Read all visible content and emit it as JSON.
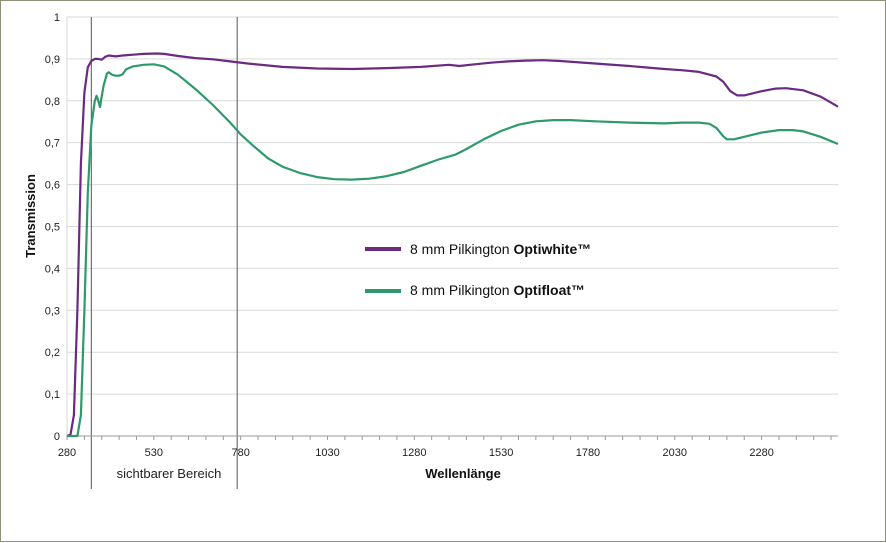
{
  "chart_data": {
    "type": "line",
    "xlabel": "Wellenlänge",
    "ylabel": "Transmission",
    "xlim": [
      280,
      2500
    ],
    "ylim": [
      0,
      1
    ],
    "x_ticks": [
      280,
      530,
      780,
      1030,
      1280,
      1530,
      1780,
      2030,
      2280
    ],
    "y_ticks": [
      "0",
      "0,1",
      "0,2",
      "0,3",
      "0,4",
      "0,5",
      "0,6",
      "0,7",
      "0,8",
      "0,9",
      "1"
    ],
    "grid": "horizontal",
    "legend_position": "center",
    "annotations": {
      "visible_range": {
        "x_start": 350,
        "x_end": 770,
        "label": "sichtbarer Bereich"
      }
    },
    "series": [
      {
        "name_regular": "8 mm Pilkington ",
        "name_bold": "Optiwhite™",
        "color": "#6a2a82",
        "points": [
          [
            280,
            0
          ],
          [
            290,
            0.003
          ],
          [
            300,
            0.05
          ],
          [
            310,
            0.3
          ],
          [
            320,
            0.65
          ],
          [
            330,
            0.82
          ],
          [
            340,
            0.88
          ],
          [
            350,
            0.895
          ],
          [
            360,
            0.9
          ],
          [
            370,
            0.9
          ],
          [
            380,
            0.898
          ],
          [
            390,
            0.905
          ],
          [
            400,
            0.908
          ],
          [
            420,
            0.906
          ],
          [
            440,
            0.908
          ],
          [
            470,
            0.91
          ],
          [
            500,
            0.912
          ],
          [
            540,
            0.913
          ],
          [
            560,
            0.912
          ],
          [
            600,
            0.907
          ],
          [
            650,
            0.902
          ],
          [
            700,
            0.899
          ],
          [
            750,
            0.894
          ],
          [
            800,
            0.889
          ],
          [
            900,
            0.881
          ],
          [
            1000,
            0.877
          ],
          [
            1100,
            0.876
          ],
          [
            1200,
            0.878
          ],
          [
            1300,
            0.881
          ],
          [
            1380,
            0.886
          ],
          [
            1410,
            0.883
          ],
          [
            1440,
            0.886
          ],
          [
            1500,
            0.891
          ],
          [
            1550,
            0.894
          ],
          [
            1600,
            0.896
          ],
          [
            1650,
            0.897
          ],
          [
            1700,
            0.895
          ],
          [
            1800,
            0.889
          ],
          [
            1900,
            0.883
          ],
          [
            2000,
            0.876
          ],
          [
            2050,
            0.873
          ],
          [
            2100,
            0.869
          ],
          [
            2150,
            0.858
          ],
          [
            2170,
            0.845
          ],
          [
            2190,
            0.823
          ],
          [
            2210,
            0.813
          ],
          [
            2230,
            0.813
          ],
          [
            2280,
            0.823
          ],
          [
            2320,
            0.829
          ],
          [
            2350,
            0.83
          ],
          [
            2400,
            0.825
          ],
          [
            2450,
            0.81
          ],
          [
            2500,
            0.786
          ]
        ]
      },
      {
        "name_regular": "8 mm Pilkington ",
        "name_bold": "Optifloat™",
        "color": "#2e9a6b",
        "points": [
          [
            280,
            0
          ],
          [
            310,
            0
          ],
          [
            320,
            0.05
          ],
          [
            330,
            0.3
          ],
          [
            340,
            0.58
          ],
          [
            350,
            0.74
          ],
          [
            360,
            0.8
          ],
          [
            365,
            0.812
          ],
          [
            370,
            0.8
          ],
          [
            375,
            0.785
          ],
          [
            380,
            0.81
          ],
          [
            385,
            0.835
          ],
          [
            390,
            0.85
          ],
          [
            395,
            0.865
          ],
          [
            400,
            0.868
          ],
          [
            410,
            0.862
          ],
          [
            420,
            0.86
          ],
          [
            430,
            0.86
          ],
          [
            440,
            0.863
          ],
          [
            450,
            0.875
          ],
          [
            470,
            0.882
          ],
          [
            500,
            0.886
          ],
          [
            530,
            0.887
          ],
          [
            560,
            0.882
          ],
          [
            600,
            0.862
          ],
          [
            650,
            0.828
          ],
          [
            700,
            0.79
          ],
          [
            750,
            0.748
          ],
          [
            780,
            0.72
          ],
          [
            820,
            0.69
          ],
          [
            860,
            0.662
          ],
          [
            900,
            0.643
          ],
          [
            950,
            0.628
          ],
          [
            1000,
            0.618
          ],
          [
            1050,
            0.613
          ],
          [
            1100,
            0.612
          ],
          [
            1150,
            0.614
          ],
          [
            1200,
            0.62
          ],
          [
            1250,
            0.63
          ],
          [
            1300,
            0.645
          ],
          [
            1350,
            0.66
          ],
          [
            1400,
            0.672
          ],
          [
            1430,
            0.685
          ],
          [
            1480,
            0.708
          ],
          [
            1530,
            0.728
          ],
          [
            1580,
            0.743
          ],
          [
            1630,
            0.751
          ],
          [
            1680,
            0.754
          ],
          [
            1730,
            0.754
          ],
          [
            1800,
            0.751
          ],
          [
            1900,
            0.748
          ],
          [
            2000,
            0.746
          ],
          [
            2050,
            0.748
          ],
          [
            2100,
            0.748
          ],
          [
            2130,
            0.745
          ],
          [
            2150,
            0.735
          ],
          [
            2170,
            0.715
          ],
          [
            2180,
            0.708
          ],
          [
            2200,
            0.708
          ],
          [
            2230,
            0.714
          ],
          [
            2280,
            0.724
          ],
          [
            2330,
            0.73
          ],
          [
            2370,
            0.73
          ],
          [
            2400,
            0.727
          ],
          [
            2450,
            0.714
          ],
          [
            2500,
            0.697
          ]
        ]
      }
    ]
  }
}
